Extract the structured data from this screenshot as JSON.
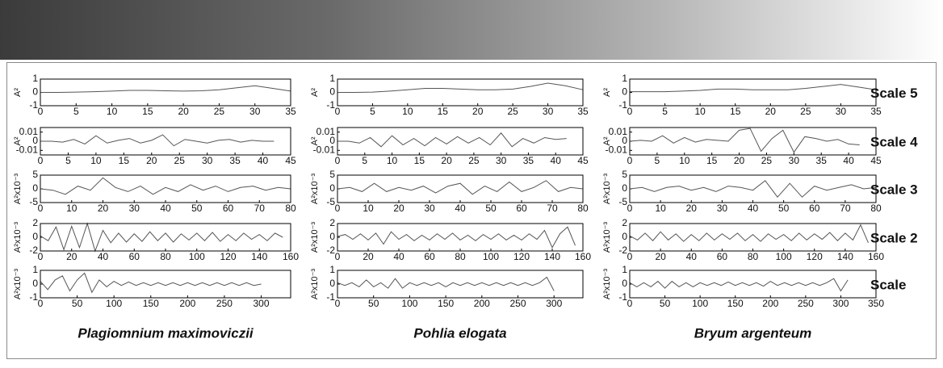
{
  "columns": [
    "Plagiomnium maximoviczii",
    "Pohlia elogata",
    "Bryum argenteum"
  ],
  "rows": [
    "Scale 5",
    "Scale 4",
    "Scale 3",
    "Scale 2",
    "Scale"
  ],
  "chart_data": [
    {
      "type": "line",
      "ylabel": "A²",
      "x": [
        0,
        2.5,
        5,
        7.5,
        10,
        12.5,
        15,
        17.5,
        20,
        22.5,
        25,
        27.5,
        30,
        32.5,
        35
      ],
      "series": [
        {
          "color": "#555555",
          "values": [
            0,
            0,
            0.02,
            0.05,
            0.1,
            0.15,
            0.15,
            0.12,
            0.1,
            0.12,
            0.2,
            0.35,
            0.5,
            0.3,
            0.1
          ]
        }
      ],
      "xlim": [
        0,
        35
      ],
      "ylim": [
        -1,
        1
      ],
      "xticks": [
        0,
        5,
        10,
        15,
        20,
        25,
        30,
        35
      ],
      "yticks": [
        -1,
        0,
        1
      ]
    },
    {
      "type": "line",
      "ylabel": "A²",
      "x": [
        0,
        2.5,
        5,
        7.5,
        10,
        12.5,
        15,
        17.5,
        20,
        22.5,
        25,
        27.5,
        30,
        32.5,
        35
      ],
      "series": [
        {
          "color": "#555555",
          "values": [
            0,
            0,
            0.02,
            0.1,
            0.2,
            0.3,
            0.3,
            0.25,
            0.2,
            0.2,
            0.25,
            0.45,
            0.7,
            0.5,
            0.2
          ]
        }
      ],
      "xlim": [
        0,
        35
      ],
      "ylim": [
        -1,
        1
      ],
      "xticks": [
        0,
        5,
        10,
        15,
        20,
        25,
        30,
        35
      ],
      "yticks": [
        -1,
        0,
        1
      ]
    },
    {
      "type": "line",
      "ylabel": "A²",
      "x": [
        0,
        2.5,
        5,
        7.5,
        10,
        12.5,
        15,
        17.5,
        20,
        22.5,
        25,
        27.5,
        30,
        32.5,
        35
      ],
      "series": [
        {
          "color": "#555555",
          "values": [
            0.05,
            0.05,
            0.05,
            0.1,
            0.15,
            0.25,
            0.25,
            0.2,
            0.2,
            0.2,
            0.3,
            0.45,
            0.6,
            0.4,
            0.2
          ]
        }
      ],
      "xlim": [
        0,
        35
      ],
      "ylim": [
        -1,
        1
      ],
      "xticks": [
        0,
        5,
        10,
        15,
        20,
        25,
        30,
        35
      ],
      "yticks": [
        -1,
        0,
        1
      ]
    },
    {
      "type": "line",
      "ylabel": "A²",
      "x": [
        0,
        2,
        4,
        6,
        8,
        10,
        12,
        14,
        16,
        18,
        20,
        22,
        24,
        26,
        28,
        30,
        32,
        34,
        36,
        38,
        40,
        42
      ],
      "series": [
        {
          "color": "#555555",
          "values": [
            0,
            0,
            -0.001,
            0.002,
            -0.003,
            0.006,
            -0.002,
            0.001,
            0.003,
            -0.002,
            0.001,
            0.007,
            -0.005,
            0.002,
            0,
            -0.002,
            0.001,
            0.002,
            -0.001,
            0.001,
            0,
            0
          ]
        }
      ],
      "xlim": [
        0,
        45
      ],
      "ylim": [
        -0.015,
        0.015
      ],
      "xticks": [
        0,
        5,
        10,
        15,
        20,
        25,
        30,
        35,
        40,
        45
      ],
      "yticks": [
        -0.01,
        0,
        0.01
      ]
    },
    {
      "type": "line",
      "ylabel": "A²",
      "x": [
        0,
        2,
        4,
        6,
        8,
        10,
        12,
        14,
        16,
        18,
        20,
        22,
        24,
        26,
        28,
        30,
        32,
        34,
        36,
        38,
        40,
        42
      ],
      "series": [
        {
          "color": "#555555",
          "values": [
            0,
            0,
            -0.002,
            0.004,
            -0.006,
            0.006,
            -0.004,
            0.003,
            -0.005,
            0.004,
            -0.003,
            0.005,
            -0.002,
            0.004,
            -0.004,
            0.009,
            -0.006,
            0.003,
            -0.002,
            0.004,
            0.002,
            0.003
          ]
        }
      ],
      "xlim": [
        0,
        45
      ],
      "ylim": [
        -0.015,
        0.015
      ],
      "xticks": [
        0,
        5,
        10,
        15,
        20,
        25,
        30,
        35,
        40,
        45
      ],
      "yticks": [
        -0.01,
        0,
        0.01
      ]
    },
    {
      "type": "line",
      "ylabel": "A²",
      "x": [
        0,
        2,
        4,
        6,
        8,
        10,
        12,
        14,
        16,
        18,
        20,
        22,
        24,
        26,
        28,
        30,
        32,
        34,
        36,
        38,
        40,
        42
      ],
      "series": [
        {
          "color": "#555555",
          "values": [
            0,
            0.001,
            0,
            0.006,
            -0.002,
            0.004,
            -0.001,
            0.002,
            0.001,
            0,
            0.012,
            0.014,
            -0.011,
            0.003,
            0.012,
            -0.012,
            0.005,
            0.003,
            0,
            0.002,
            -0.003,
            -0.004
          ]
        }
      ],
      "xlim": [
        0,
        45
      ],
      "ylim": [
        -0.015,
        0.015
      ],
      "xticks": [
        0,
        5,
        10,
        15,
        20,
        25,
        30,
        35,
        40,
        45
      ],
      "yticks": [
        -0.01,
        0,
        0.01
      ]
    },
    {
      "type": "line",
      "ylabel": "A²x10⁻³",
      "x": [
        0,
        4,
        8,
        12,
        16,
        20,
        24,
        28,
        32,
        36,
        40,
        44,
        48,
        52,
        56,
        60,
        64,
        68,
        72,
        76,
        80
      ],
      "series": [
        {
          "color": "#555555",
          "values": [
            0,
            -0.5,
            -2,
            1,
            -0.5,
            4,
            0.5,
            -1,
            1,
            -2,
            0.5,
            -1,
            1.5,
            -0.5,
            1,
            -1,
            0.5,
            1,
            -0.5,
            0.5,
            0
          ]
        }
      ],
      "xlim": [
        0,
        80
      ],
      "ylim": [
        -5,
        5
      ],
      "xticks": [
        0,
        10,
        20,
        30,
        40,
        50,
        60,
        70,
        80
      ],
      "yticks": [
        -5,
        0,
        5
      ]
    },
    {
      "type": "line",
      "ylabel": "A²x10⁻³",
      "x": [
        0,
        4,
        8,
        12,
        16,
        20,
        24,
        28,
        32,
        36,
        40,
        44,
        48,
        52,
        56,
        60,
        64,
        68,
        72,
        76,
        80
      ],
      "series": [
        {
          "color": "#555555",
          "values": [
            0,
            0.5,
            -1,
            2,
            -1,
            0.5,
            -0.5,
            1,
            -1.5,
            1,
            2,
            -2,
            1,
            -1,
            2.5,
            -1,
            0.5,
            3,
            -1,
            0.5,
            0
          ]
        }
      ],
      "xlim": [
        0,
        80
      ],
      "ylim": [
        -5,
        5
      ],
      "xticks": [
        0,
        10,
        20,
        30,
        40,
        50,
        60,
        70,
        80
      ],
      "yticks": [
        -5,
        0,
        5
      ]
    },
    {
      "type": "line",
      "ylabel": "A²x10⁻³",
      "x": [
        0,
        4,
        8,
        12,
        16,
        20,
        24,
        28,
        32,
        36,
        40,
        44,
        48,
        52,
        56,
        60,
        64,
        68,
        72,
        76,
        80
      ],
      "series": [
        {
          "color": "#555555",
          "values": [
            0,
            0.5,
            -1,
            0.5,
            1,
            -0.5,
            0.5,
            -1,
            1,
            0.5,
            -0.5,
            3,
            -3,
            2,
            -3,
            1,
            -0.5,
            0.5,
            1.5,
            0,
            0.5
          ]
        }
      ],
      "xlim": [
        0,
        80
      ],
      "ylim": [
        -5,
        5
      ],
      "xticks": [
        0,
        10,
        20,
        30,
        40,
        50,
        60,
        70,
        80
      ],
      "yticks": [
        -5,
        0,
        5
      ]
    },
    {
      "type": "line",
      "ylabel": "A²x10⁻³",
      "x": [
        0,
        5,
        10,
        15,
        20,
        25,
        30,
        35,
        40,
        45,
        50,
        55,
        60,
        65,
        70,
        75,
        80,
        85,
        90,
        95,
        100,
        105,
        110,
        115,
        120,
        125,
        130,
        135,
        140,
        145,
        150,
        155
      ],
      "series": [
        {
          "color": "#555555",
          "values": [
            0.2,
            -0.5,
            1.5,
            -1.8,
            1.6,
            -1.5,
            2,
            -2,
            1,
            -0.8,
            0.6,
            -0.7,
            0.5,
            -0.6,
            0.8,
            -0.5,
            0.6,
            -0.7,
            0.5,
            -0.4,
            0.6,
            -0.5,
            0.7,
            -0.6,
            0.4,
            -0.5,
            0.6,
            -0.3,
            0.4,
            -0.5,
            0.6,
            0
          ]
        }
      ],
      "xlim": [
        0,
        160
      ],
      "ylim": [
        -2,
        2
      ],
      "xticks": [
        0,
        20,
        40,
        60,
        80,
        100,
        120,
        140,
        160
      ],
      "yticks": [
        -2,
        0,
        2
      ]
    },
    {
      "type": "line",
      "ylabel": "A²x10⁻³",
      "x": [
        0,
        5,
        10,
        15,
        20,
        25,
        30,
        35,
        40,
        45,
        50,
        55,
        60,
        65,
        70,
        75,
        80,
        85,
        90,
        95,
        100,
        105,
        110,
        115,
        120,
        125,
        130,
        135,
        140,
        145,
        150,
        155
      ],
      "series": [
        {
          "color": "#555555",
          "values": [
            0.1,
            0.4,
            -0.3,
            0.5,
            -0.4,
            0.6,
            -1,
            0.8,
            -0.3,
            0.4,
            -0.5,
            0.3,
            -0.4,
            0.5,
            -0.3,
            0.6,
            -0.4,
            0.3,
            -0.5,
            0.4,
            -0.3,
            0.5,
            -0.4,
            0.3,
            -0.4,
            0.5,
            -0.3,
            1,
            -1.5,
            0.5,
            1.5,
            -1.2
          ]
        }
      ],
      "xlim": [
        0,
        160
      ],
      "ylim": [
        -2,
        2
      ],
      "xticks": [
        0,
        20,
        40,
        60,
        80,
        100,
        120,
        140,
        160
      ],
      "yticks": [
        -2,
        0,
        2
      ]
    },
    {
      "type": "line",
      "ylabel": "A²x10⁻³",
      "x": [
        0,
        5,
        10,
        15,
        20,
        25,
        30,
        35,
        40,
        45,
        50,
        55,
        60,
        65,
        70,
        75,
        80,
        85,
        90,
        95,
        100,
        105,
        110,
        115,
        120,
        125,
        130,
        135,
        140,
        145,
        150,
        155
      ],
      "series": [
        {
          "color": "#555555",
          "values": [
            0.2,
            -0.4,
            0.6,
            -0.5,
            0.8,
            -0.4,
            0.5,
            -0.6,
            0.4,
            -0.5,
            0.6,
            -0.4,
            0.5,
            -0.3,
            0.6,
            -0.5,
            0.4,
            -0.6,
            0.5,
            -0.3,
            0.4,
            -0.5,
            0.6,
            -0.4,
            0.5,
            -0.3,
            0.7,
            -0.5,
            0.6,
            -0.4,
            1.8,
            -0.8
          ]
        }
      ],
      "xlim": [
        0,
        160
      ],
      "ylim": [
        -2,
        2
      ],
      "xticks": [
        0,
        20,
        40,
        60,
        80,
        100,
        120,
        140,
        160
      ],
      "yticks": [
        -2,
        0,
        2
      ]
    },
    {
      "type": "line",
      "ylabel": "A²x10⁻³",
      "x": [
        0,
        10,
        20,
        30,
        40,
        50,
        60,
        70,
        80,
        90,
        100,
        110,
        120,
        130,
        140,
        150,
        160,
        170,
        180,
        190,
        200,
        210,
        220,
        230,
        240,
        250,
        260,
        270,
        280,
        290,
        300
      ],
      "series": [
        {
          "color": "#555555",
          "values": [
            0.2,
            -0.4,
            0.3,
            0.6,
            -0.5,
            0.3,
            0.8,
            -0.6,
            0.3,
            -0.2,
            0.2,
            -0.1,
            0.15,
            -0.1,
            0.1,
            -0.1,
            0.1,
            -0.1,
            0.1,
            -0.1,
            0.1,
            -0.1,
            0.1,
            -0.1,
            0.1,
            -0.1,
            0.1,
            -0.1,
            0.1,
            -0.1,
            0
          ]
        }
      ],
      "xlim": [
        0,
        340
      ],
      "ylim": [
        -1,
        1
      ],
      "xticks": [
        0,
        50,
        100,
        150,
        200,
        250,
        300
      ],
      "yticks": [
        -1,
        0,
        1
      ]
    },
    {
      "type": "line",
      "ylabel": "A²x10⁻³",
      "x": [
        0,
        10,
        20,
        30,
        40,
        50,
        60,
        70,
        80,
        90,
        100,
        110,
        120,
        130,
        140,
        150,
        160,
        170,
        180,
        190,
        200,
        210,
        220,
        230,
        240,
        250,
        260,
        270,
        280,
        290,
        300
      ],
      "series": [
        {
          "color": "#555555",
          "values": [
            0.1,
            -0.1,
            0.1,
            -0.2,
            0.3,
            -0.2,
            0.1,
            -0.3,
            0.4,
            -0.3,
            0.1,
            -0.1,
            0.1,
            -0.1,
            0.1,
            -0.2,
            0.1,
            -0.1,
            0.1,
            -0.1,
            0.1,
            -0.1,
            0.1,
            -0.1,
            0.1,
            -0.1,
            0.1,
            -0.1,
            0.1,
            0.5,
            -0.5
          ]
        }
      ],
      "xlim": [
        0,
        340
      ],
      "ylim": [
        -1,
        1
      ],
      "xticks": [
        0,
        50,
        100,
        150,
        200,
        250,
        300
      ],
      "yticks": [
        -1,
        0,
        1
      ]
    },
    {
      "type": "line",
      "ylabel": "A²x10⁻³",
      "x": [
        0,
        10,
        20,
        30,
        40,
        50,
        60,
        70,
        80,
        90,
        100,
        110,
        120,
        130,
        140,
        150,
        160,
        170,
        180,
        190,
        200,
        210,
        220,
        230,
        240,
        250,
        260,
        270,
        280,
        290,
        300,
        310
      ],
      "series": [
        {
          "color": "#555555",
          "values": [
            0.1,
            -0.2,
            0.1,
            -0.2,
            0.2,
            -0.3,
            0.2,
            -0.2,
            0.1,
            -0.2,
            0.1,
            -0.1,
            0.1,
            -0.1,
            0.15,
            -0.1,
            0.1,
            -0.1,
            0.1,
            -0.15,
            0.2,
            -0.1,
            0.1,
            -0.1,
            0.1,
            -0.1,
            0.1,
            -0.1,
            0.1,
            0.4,
            -0.5,
            0.3
          ]
        }
      ],
      "xlim": [
        0,
        350
      ],
      "ylim": [
        -1,
        1
      ],
      "xticks": [
        0,
        50,
        100,
        150,
        200,
        250,
        300,
        350
      ],
      "yticks": [
        -1,
        0,
        1
      ]
    }
  ]
}
